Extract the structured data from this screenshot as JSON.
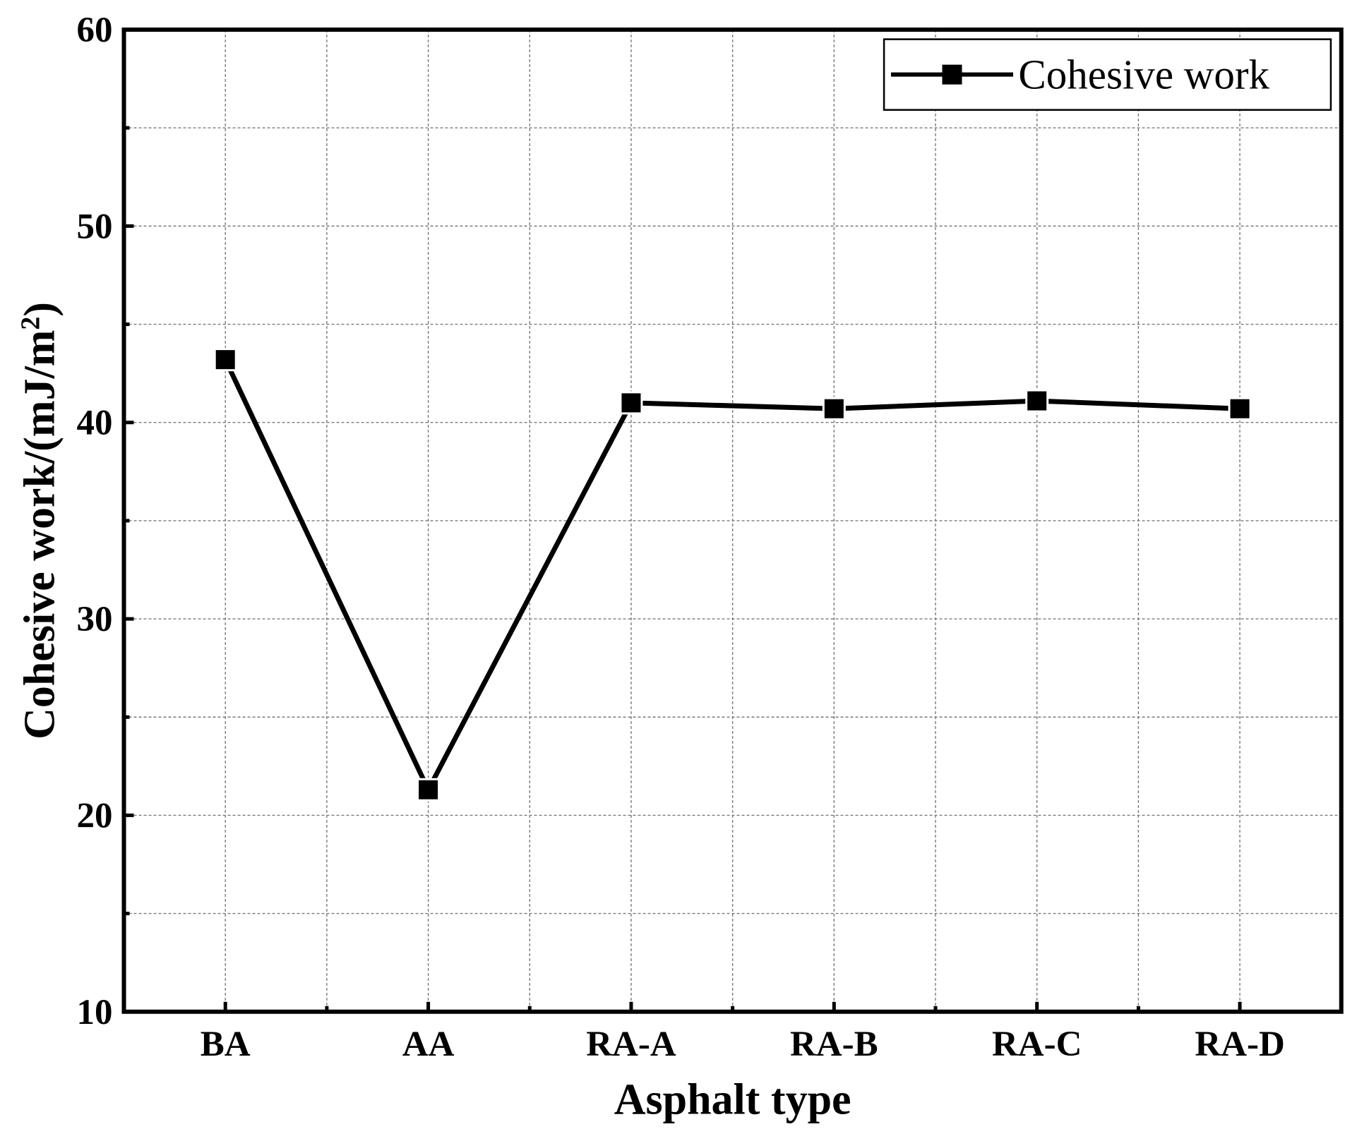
{
  "chart_data": {
    "type": "line",
    "title": "",
    "xlabel": "Asphalt type",
    "ylabel": "Cohesive work/(mJ/m²)",
    "ylabel_parts": {
      "main": "Cohesive work/(mJ/m",
      "sup": "2",
      "end": ")"
    },
    "categories": [
      "BA",
      "AA",
      "RA-A",
      "RA-B",
      "RA-C",
      "RA-D"
    ],
    "ylim": [
      10,
      60
    ],
    "yticks": [
      "10",
      "20",
      "30",
      "40",
      "50",
      "60"
    ],
    "grid": true,
    "legend_position": "top-right",
    "series": [
      {
        "name": "Cohesive work",
        "values": [
          43.2,
          21.3,
          41.0,
          40.7,
          41.1,
          40.7
        ],
        "marker": "square",
        "color": "#000000"
      }
    ]
  }
}
